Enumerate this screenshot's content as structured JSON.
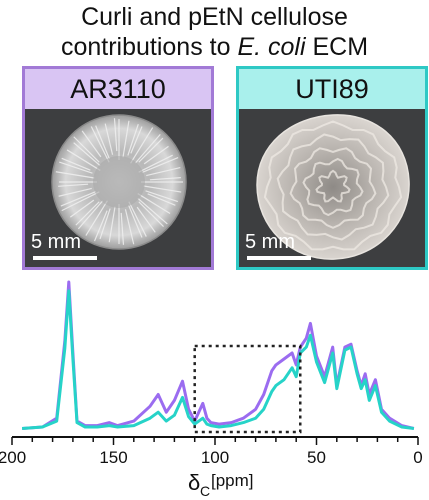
{
  "title": {
    "line1": "Curli and pEtN cellulose",
    "line2_prefix": "contributions to ",
    "line2_italic": "E. coli",
    "line2_suffix": " ECM"
  },
  "panels": [
    {
      "strain": "AR3110",
      "scale_label": "5 mm",
      "border_color": "#a27ad6",
      "header_color": "#d9c5f3"
    },
    {
      "strain": "UTI89",
      "scale_label": "5 mm",
      "border_color": "#2ec9c5",
      "header_color": "#a9f0ec"
    }
  ],
  "chart_data": {
    "type": "line",
    "xlabel_symbol": "δ",
    "xlabel_subscript": "C",
    "xlabel_unit": "[ppm]",
    "xlim": [
      200,
      0
    ],
    "x_reversed": true,
    "xticks": [
      200,
      150,
      100,
      50,
      0
    ],
    "highlight_box": {
      "x_range": [
        110,
        58
      ],
      "style": "dotted"
    },
    "series": [
      {
        "color": "#9b6cf0",
        "x": [
          195,
          185,
          178,
          174,
          172,
          170,
          168,
          164,
          158,
          152,
          148,
          140,
          132,
          128,
          124,
          120,
          116,
          113,
          110,
          106,
          104,
          102,
          98,
          92,
          86,
          80,
          76,
          72,
          70,
          66,
          62,
          60,
          58,
          55,
          53,
          50,
          46,
          42,
          40,
          36,
          33,
          30,
          28,
          26,
          24,
          21,
          18,
          14,
          8,
          2
        ],
        "y": [
          1,
          2,
          8,
          60,
          100,
          52,
          6,
          3,
          3,
          5,
          3,
          6,
          16,
          24,
          12,
          20,
          33,
          14,
          6,
          18,
          8,
          5,
          4,
          5,
          8,
          14,
          24,
          40,
          44,
          48,
          52,
          44,
          56,
          62,
          72,
          50,
          36,
          56,
          30,
          56,
          58,
          40,
          30,
          38,
          24,
          34,
          14,
          8,
          3,
          1
        ]
      },
      {
        "color": "#26d3c8",
        "x": [
          195,
          185,
          178,
          174,
          172,
          170,
          168,
          164,
          158,
          152,
          148,
          140,
          132,
          128,
          124,
          120,
          116,
          113,
          110,
          106,
          104,
          102,
          98,
          92,
          86,
          80,
          76,
          72,
          70,
          66,
          62,
          60,
          58,
          55,
          53,
          50,
          46,
          42,
          40,
          36,
          33,
          30,
          28,
          26,
          24,
          21,
          18,
          14,
          8,
          2
        ],
        "y": [
          1,
          2,
          6,
          55,
          94,
          48,
          5,
          2,
          2,
          3,
          2,
          3,
          8,
          12,
          6,
          10,
          22,
          9,
          4,
          8,
          4,
          3,
          2,
          3,
          5,
          8,
          14,
          26,
          30,
          34,
          42,
          36,
          52,
          56,
          64,
          46,
          32,
          52,
          28,
          54,
          56,
          38,
          28,
          34,
          20,
          30,
          12,
          6,
          2,
          1
        ]
      }
    ]
  }
}
